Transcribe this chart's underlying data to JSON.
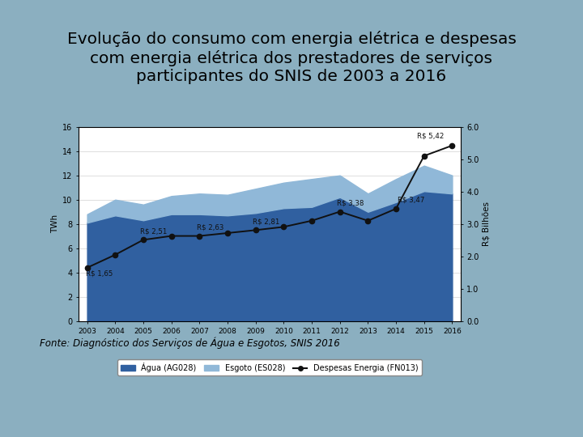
{
  "title": "Evolução do consumo com energia elétrica e despesas\ncom energia elétrica dos prestadores de serviços\nparticipantes do SNIS de 2003 a 2016",
  "fonte": "Fonte: Diagnóstico dos Serviços de Água e Esgotos, SNIS 2016",
  "years": [
    2003,
    2004,
    2005,
    2006,
    2007,
    2008,
    2009,
    2010,
    2011,
    2012,
    2013,
    2014,
    2015,
    2016
  ],
  "agua": [
    8.1,
    8.7,
    8.3,
    8.8,
    8.8,
    8.7,
    8.9,
    9.3,
    9.4,
    10.2,
    9.0,
    9.8,
    10.7,
    10.5
  ],
  "esgoto_add": [
    0.7,
    1.3,
    1.3,
    1.5,
    1.7,
    1.7,
    2.0,
    2.1,
    2.3,
    1.8,
    1.5,
    1.9,
    2.1,
    1.5
  ],
  "despesas": [
    1.65,
    2.05,
    2.51,
    2.63,
    2.63,
    2.72,
    2.81,
    2.91,
    3.1,
    3.38,
    3.1,
    3.47,
    5.1,
    5.42
  ],
  "despesas_label_indices": [
    0,
    2,
    4,
    6,
    9,
    11,
    13
  ],
  "despesas_labels": [
    "R$ 1,65",
    "R$ 2,51",
    "R$ 2,63",
    "R$ 2,81",
    "R$ 3,38",
    "R$ 3,47",
    "R$ 5,42"
  ],
  "agua_color": "#3060A0",
  "esgoto_color": "#90B8D8",
  "despesas_color": "#111111",
  "ylabel_left": "TWh",
  "ylabel_right": "R$ Bilhões",
  "ylim_left": [
    0,
    16
  ],
  "ylim_right": [
    0,
    6.0
  ],
  "yticks_left": [
    0,
    2,
    4,
    6,
    8,
    10,
    12,
    14,
    16
  ],
  "yticks_right": [
    0.0,
    1.0,
    2.0,
    3.0,
    4.0,
    5.0,
    6.0
  ],
  "bg_color": "#8BAFC0",
  "chart_bg": "#FFFFFF",
  "title_color": "#000000",
  "title_fontsize": 14.5,
  "legend_labels": [
    "Água (AG028)",
    "Esgoto (ES028)",
    "Despesas Energia (FN013)"
  ]
}
